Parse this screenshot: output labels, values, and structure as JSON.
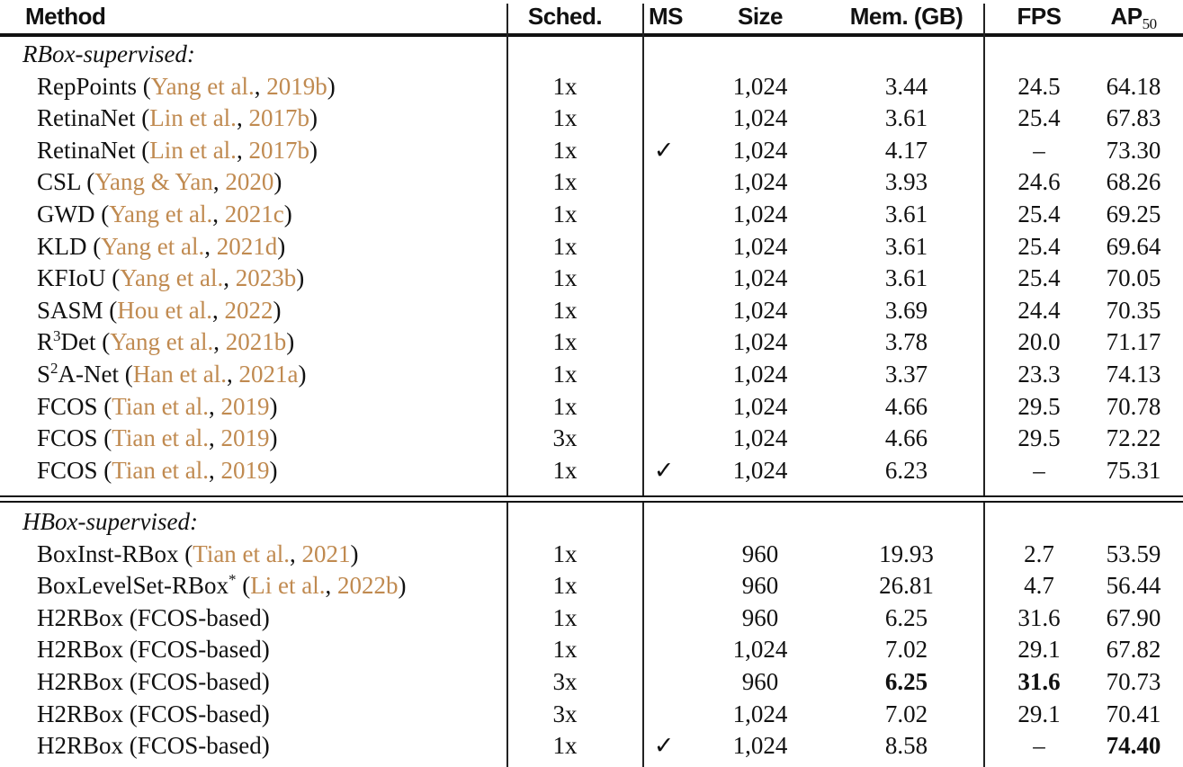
{
  "table": {
    "headers": {
      "method": "Method",
      "sched": "Sched.",
      "ms": "MS",
      "size": "Size",
      "mem": "Mem. (GB)",
      "fps": "FPS",
      "ap_main": "AP",
      "ap_sub": "50"
    },
    "colors": {
      "citation": "#c08a50",
      "text": "#111111"
    },
    "sections": [
      {
        "title": "RBox-supervised:",
        "rows": [
          {
            "name": "RepPoints",
            "sup": "",
            "star": "",
            "cite_a": "Yang et al.",
            "cite_y": "2019b",
            "sched": "1x",
            "ms": "",
            "size": "1,024",
            "mem": "3.44",
            "fps": "24.5",
            "ap": "64.18"
          },
          {
            "name": "RetinaNet",
            "sup": "",
            "star": "",
            "cite_a": "Lin et al.",
            "cite_y": "2017b",
            "sched": "1x",
            "ms": "",
            "size": "1,024",
            "mem": "3.61",
            "fps": "25.4",
            "ap": "67.83"
          },
          {
            "name": "RetinaNet",
            "sup": "",
            "star": "",
            "cite_a": "Lin et al.",
            "cite_y": "2017b",
            "sched": "1x",
            "ms": "✓",
            "size": "1,024",
            "mem": "4.17",
            "fps": "–",
            "ap": "73.30"
          },
          {
            "name": "CSL",
            "sup": "",
            "star": "",
            "cite_a": "Yang & Yan",
            "cite_y": "2020",
            "sched": "1x",
            "ms": "",
            "size": "1,024",
            "mem": "3.93",
            "fps": "24.6",
            "ap": "68.26"
          },
          {
            "name": "GWD",
            "sup": "",
            "star": "",
            "cite_a": "Yang et al.",
            "cite_y": "2021c",
            "sched": "1x",
            "ms": "",
            "size": "1,024",
            "mem": "3.61",
            "fps": "25.4",
            "ap": "69.25"
          },
          {
            "name": "KLD",
            "sup": "",
            "star": "",
            "cite_a": "Yang et al.",
            "cite_y": "2021d",
            "sched": "1x",
            "ms": "",
            "size": "1,024",
            "mem": "3.61",
            "fps": "25.4",
            "ap": "69.64"
          },
          {
            "name": "KFIoU",
            "sup": "",
            "star": "",
            "cite_a": "Yang et al.",
            "cite_y": "2023b",
            "sched": "1x",
            "ms": "",
            "size": "1,024",
            "mem": "3.61",
            "fps": "25.4",
            "ap": "70.05"
          },
          {
            "name": "SASM",
            "sup": "",
            "star": "",
            "cite_a": "Hou et al.",
            "cite_y": "2022",
            "sched": "1x",
            "ms": "",
            "size": "1,024",
            "mem": "3.69",
            "fps": "24.4",
            "ap": "70.35"
          },
          {
            "name_pre": "R",
            "sup": "3",
            "name": "Det",
            "star": "",
            "cite_a": "Yang et al.",
            "cite_y": "2021b",
            "sched": "1x",
            "ms": "",
            "size": "1,024",
            "mem": "3.78",
            "fps": "20.0",
            "ap": "71.17"
          },
          {
            "name_pre": "S",
            "sup": "2",
            "name": "A-Net",
            "star": "",
            "cite_a": "Han et al.",
            "cite_y": "2021a",
            "sched": "1x",
            "ms": "",
            "size": "1,024",
            "mem": "3.37",
            "fps": "23.3",
            "ap": "74.13"
          },
          {
            "name": "FCOS",
            "sup": "",
            "star": "",
            "cite_a": "Tian et al.",
            "cite_y": "2019",
            "sched": "1x",
            "ms": "",
            "size": "1,024",
            "mem": "4.66",
            "fps": "29.5",
            "ap": "70.78"
          },
          {
            "name": "FCOS",
            "sup": "",
            "star": "",
            "cite_a": "Tian et al.",
            "cite_y": "2019",
            "sched": "3x",
            "ms": "",
            "size": "1,024",
            "mem": "4.66",
            "fps": "29.5",
            "ap": "72.22"
          },
          {
            "name": "FCOS",
            "sup": "",
            "star": "",
            "cite_a": "Tian et al.",
            "cite_y": "2019",
            "sched": "1x",
            "ms": "✓",
            "size": "1,024",
            "mem": "6.23",
            "fps": "–",
            "ap": "75.31"
          }
        ]
      },
      {
        "title": "HBox-supervised:",
        "rows": [
          {
            "name": "BoxInst-RBox",
            "sup": "",
            "star": "",
            "cite_a": "Tian et al.",
            "cite_y": "2021",
            "sched": "1x",
            "ms": "",
            "size": "960",
            "mem": "19.93",
            "fps": "2.7",
            "ap": "53.59"
          },
          {
            "name": "BoxLevelSet-RBox",
            "sup": "",
            "star": "*",
            "cite_a": "Li et al.",
            "cite_y": "2022b",
            "sched": "1x",
            "ms": "",
            "size": "960",
            "mem": "26.81",
            "fps": "4.7",
            "ap": "56.44"
          },
          {
            "name": "H2RBox (FCOS-based)",
            "sup": "",
            "star": "",
            "cite_a": "",
            "cite_y": "",
            "sched": "1x",
            "ms": "",
            "size": "960",
            "mem": "6.25",
            "fps": "31.6",
            "ap": "67.90"
          },
          {
            "name": "H2RBox (FCOS-based)",
            "sup": "",
            "star": "",
            "cite_a": "",
            "cite_y": "",
            "sched": "1x",
            "ms": "",
            "size": "1,024",
            "mem": "7.02",
            "fps": "29.1",
            "ap": "67.82"
          },
          {
            "name": "H2RBox (FCOS-based)",
            "sup": "",
            "star": "",
            "cite_a": "",
            "cite_y": "",
            "sched": "3x",
            "ms": "",
            "size": "960",
            "mem": "6.25",
            "fps": "31.6",
            "ap": "70.73",
            "bold": [
              "mem",
              "fps"
            ]
          },
          {
            "name": "H2RBox (FCOS-based)",
            "sup": "",
            "star": "",
            "cite_a": "",
            "cite_y": "",
            "sched": "3x",
            "ms": "",
            "size": "1,024",
            "mem": "7.02",
            "fps": "29.1",
            "ap": "70.41"
          },
          {
            "name": "H2RBox (FCOS-based)",
            "sup": "",
            "star": "",
            "cite_a": "",
            "cite_y": "",
            "sched": "1x",
            "ms": "✓",
            "size": "1,024",
            "mem": "8.58",
            "fps": "–",
            "ap": "74.40",
            "bold": [
              "ap"
            ]
          }
        ]
      }
    ]
  }
}
